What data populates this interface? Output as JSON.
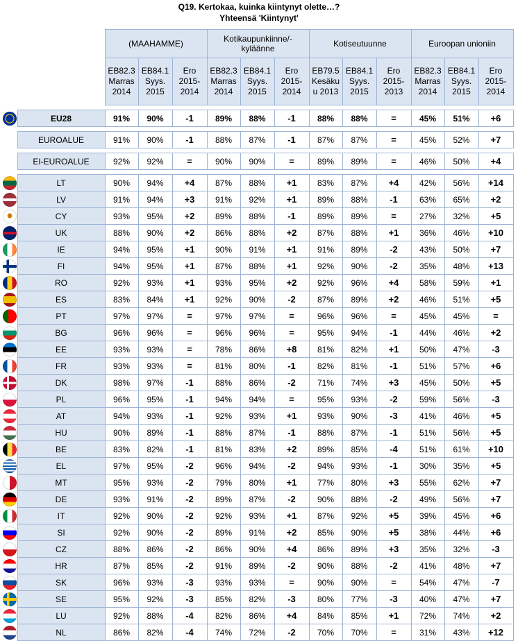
{
  "title": "Q19. Kertokaa, kuinka kiintynyt olette…?",
  "subtitle": "Yhteensä 'Kiintynyt'",
  "groups": [
    {
      "label": "(MAAHAMME)",
      "cols": [
        "EB82.3 Marras 2014",
        "EB84.1 Syys. 2015",
        "Ero 2015-2014"
      ]
    },
    {
      "label": "Kotikaupunkiinne/-kyläänne",
      "cols": [
        "EB82.3 Marras 2014",
        "EB84.1 Syys. 2015",
        "Ero 2015-2014"
      ]
    },
    {
      "label": "Kotiseutuunne",
      "cols": [
        "EB79.5 Kesäku u 2013",
        "EB84.1 Syys. 2015",
        "Ero 2015-2013"
      ]
    },
    {
      "label": "Euroopan unioniin",
      "cols": [
        "EB82.3 Marras 2014",
        "EB84.1 Syys. 2015",
        "Ero 2015-2014"
      ]
    }
  ],
  "summary": [
    {
      "label": "EU28",
      "flag": "eu",
      "vals": [
        "91%",
        "90%",
        "-1",
        "89%",
        "88%",
        "-1",
        "88%",
        "88%",
        "=",
        "45%",
        "51%",
        "+6"
      ]
    },
    {
      "label": "EUROALUE",
      "flag": "",
      "vals": [
        "91%",
        "90%",
        "-1",
        "88%",
        "87%",
        "-1",
        "87%",
        "87%",
        "=",
        "45%",
        "52%",
        "+7"
      ]
    },
    {
      "label": "EI-EUROALUE",
      "flag": "",
      "vals": [
        "92%",
        "92%",
        "=",
        "90%",
        "90%",
        "=",
        "89%",
        "89%",
        "=",
        "46%",
        "50%",
        "+4"
      ]
    }
  ],
  "countries": [
    {
      "label": "LT",
      "flag": "lt",
      "vals": [
        "90%",
        "94%",
        "+4",
        "87%",
        "88%",
        "+1",
        "83%",
        "87%",
        "+4",
        "42%",
        "56%",
        "+14"
      ]
    },
    {
      "label": "LV",
      "flag": "lv",
      "vals": [
        "91%",
        "94%",
        "+3",
        "91%",
        "92%",
        "+1",
        "89%",
        "88%",
        "-1",
        "63%",
        "65%",
        "+2"
      ]
    },
    {
      "label": "CY",
      "flag": "cy",
      "vals": [
        "93%",
        "95%",
        "+2",
        "89%",
        "88%",
        "-1",
        "89%",
        "89%",
        "=",
        "27%",
        "32%",
        "+5"
      ]
    },
    {
      "label": "UK",
      "flag": "uk",
      "vals": [
        "88%",
        "90%",
        "+2",
        "86%",
        "88%",
        "+2",
        "87%",
        "88%",
        "+1",
        "36%",
        "46%",
        "+10"
      ]
    },
    {
      "label": "IE",
      "flag": "ie",
      "vals": [
        "94%",
        "95%",
        "+1",
        "90%",
        "91%",
        "+1",
        "91%",
        "89%",
        "-2",
        "43%",
        "50%",
        "+7"
      ]
    },
    {
      "label": "FI",
      "flag": "fi",
      "vals": [
        "94%",
        "95%",
        "+1",
        "87%",
        "88%",
        "+1",
        "92%",
        "90%",
        "-2",
        "35%",
        "48%",
        "+13"
      ]
    },
    {
      "label": "RO",
      "flag": "ro",
      "vals": [
        "92%",
        "93%",
        "+1",
        "93%",
        "95%",
        "+2",
        "92%",
        "96%",
        "+4",
        "58%",
        "59%",
        "+1"
      ]
    },
    {
      "label": "ES",
      "flag": "es",
      "vals": [
        "83%",
        "84%",
        "+1",
        "92%",
        "90%",
        "-2",
        "87%",
        "89%",
        "+2",
        "46%",
        "51%",
        "+5"
      ]
    },
    {
      "label": "PT",
      "flag": "pt",
      "vals": [
        "97%",
        "97%",
        "=",
        "97%",
        "97%",
        "=",
        "96%",
        "96%",
        "=",
        "45%",
        "45%",
        "="
      ]
    },
    {
      "label": "BG",
      "flag": "bg",
      "vals": [
        "96%",
        "96%",
        "=",
        "96%",
        "96%",
        "=",
        "95%",
        "94%",
        "-1",
        "44%",
        "46%",
        "+2"
      ]
    },
    {
      "label": "EE",
      "flag": "ee",
      "vals": [
        "93%",
        "93%",
        "=",
        "78%",
        "86%",
        "+8",
        "81%",
        "82%",
        "+1",
        "50%",
        "47%",
        "-3"
      ]
    },
    {
      "label": "FR",
      "flag": "fr",
      "vals": [
        "93%",
        "93%",
        "=",
        "81%",
        "80%",
        "-1",
        "82%",
        "81%",
        "-1",
        "51%",
        "57%",
        "+6"
      ]
    },
    {
      "label": "DK",
      "flag": "dk",
      "vals": [
        "98%",
        "97%",
        "-1",
        "88%",
        "86%",
        "-2",
        "71%",
        "74%",
        "+3",
        "45%",
        "50%",
        "+5"
      ]
    },
    {
      "label": "PL",
      "flag": "pl",
      "vals": [
        "96%",
        "95%",
        "-1",
        "94%",
        "94%",
        "=",
        "95%",
        "93%",
        "-2",
        "59%",
        "56%",
        "-3"
      ]
    },
    {
      "label": "AT",
      "flag": "at",
      "vals": [
        "94%",
        "93%",
        "-1",
        "92%",
        "93%",
        "+1",
        "93%",
        "90%",
        "-3",
        "41%",
        "46%",
        "+5"
      ]
    },
    {
      "label": "HU",
      "flag": "hu",
      "vals": [
        "90%",
        "89%",
        "-1",
        "88%",
        "87%",
        "-1",
        "88%",
        "87%",
        "-1",
        "51%",
        "56%",
        "+5"
      ]
    },
    {
      "label": "BE",
      "flag": "be",
      "vals": [
        "83%",
        "82%",
        "-1",
        "81%",
        "83%",
        "+2",
        "89%",
        "85%",
        "-4",
        "51%",
        "61%",
        "+10"
      ]
    },
    {
      "label": "EL",
      "flag": "el",
      "vals": [
        "97%",
        "95%",
        "-2",
        "96%",
        "94%",
        "-2",
        "94%",
        "93%",
        "-1",
        "30%",
        "35%",
        "+5"
      ]
    },
    {
      "label": "MT",
      "flag": "mt",
      "vals": [
        "95%",
        "93%",
        "-2",
        "79%",
        "80%",
        "+1",
        "77%",
        "80%",
        "+3",
        "55%",
        "62%",
        "+7"
      ]
    },
    {
      "label": "DE",
      "flag": "de",
      "vals": [
        "93%",
        "91%",
        "-2",
        "89%",
        "87%",
        "-2",
        "90%",
        "88%",
        "-2",
        "49%",
        "56%",
        "+7"
      ]
    },
    {
      "label": "IT",
      "flag": "it",
      "vals": [
        "92%",
        "90%",
        "-2",
        "92%",
        "93%",
        "+1",
        "87%",
        "92%",
        "+5",
        "39%",
        "45%",
        "+6"
      ]
    },
    {
      "label": "SI",
      "flag": "si",
      "vals": [
        "92%",
        "90%",
        "-2",
        "89%",
        "91%",
        "+2",
        "85%",
        "90%",
        "+5",
        "38%",
        "44%",
        "+6"
      ]
    },
    {
      "label": "CZ",
      "flag": "cz",
      "vals": [
        "88%",
        "86%",
        "-2",
        "86%",
        "90%",
        "+4",
        "86%",
        "89%",
        "+3",
        "35%",
        "32%",
        "-3"
      ]
    },
    {
      "label": "HR",
      "flag": "hr",
      "vals": [
        "87%",
        "85%",
        "-2",
        "91%",
        "89%",
        "-2",
        "90%",
        "88%",
        "-2",
        "41%",
        "48%",
        "+7"
      ]
    },
    {
      "label": "SK",
      "flag": "sk",
      "vals": [
        "96%",
        "93%",
        "-3",
        "93%",
        "93%",
        "=",
        "90%",
        "90%",
        "=",
        "54%",
        "47%",
        "-7"
      ]
    },
    {
      "label": "SE",
      "flag": "se",
      "vals": [
        "95%",
        "92%",
        "-3",
        "85%",
        "82%",
        "-3",
        "80%",
        "77%",
        "-3",
        "40%",
        "47%",
        "+7"
      ]
    },
    {
      "label": "LU",
      "flag": "lu",
      "vals": [
        "92%",
        "88%",
        "-4",
        "82%",
        "86%",
        "+4",
        "84%",
        "85%",
        "+1",
        "72%",
        "74%",
        "+2"
      ]
    },
    {
      "label": "NL",
      "flag": "nl",
      "vals": [
        "86%",
        "82%",
        "-4",
        "74%",
        "72%",
        "-2",
        "70%",
        "70%",
        "=",
        "31%",
        "43%",
        "+12"
      ]
    }
  ]
}
